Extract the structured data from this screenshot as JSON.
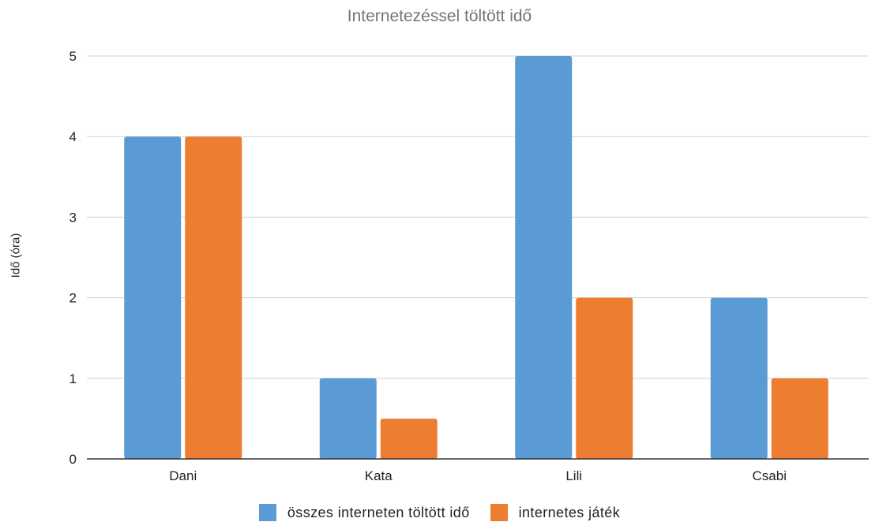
{
  "chart_data": {
    "type": "bar",
    "title": "Internetezéssel töltött idő",
    "xlabel": "",
    "ylabel": "Idő (óra)",
    "categories": [
      "Dani",
      "Kata",
      "Lili",
      "Csabi"
    ],
    "series": [
      {
        "name": "összes interneten töltött idő",
        "values": [
          4,
          1,
          5,
          2
        ],
        "color": "#5b9bd5"
      },
      {
        "name": "internetes játék",
        "values": [
          4,
          0.5,
          2,
          1
        ],
        "color": "#ed7d31"
      }
    ],
    "ylim": [
      0,
      5
    ],
    "yticks": [
      0,
      1,
      2,
      3,
      4,
      5
    ],
    "grid": true,
    "legend": "bottom"
  }
}
